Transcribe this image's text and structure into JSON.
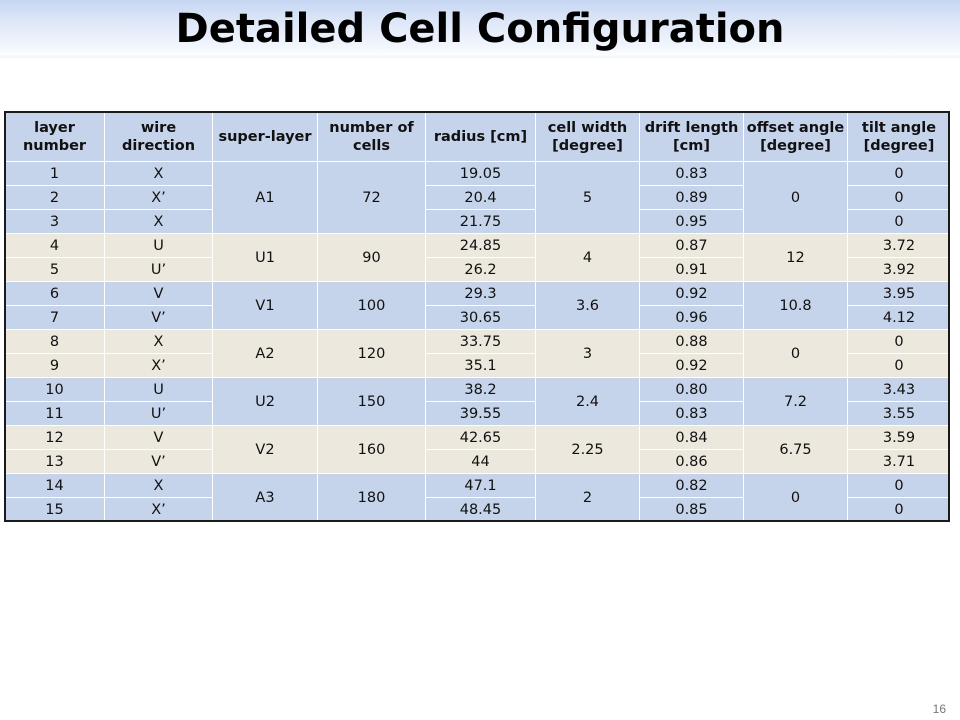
{
  "slide": {
    "title": "Detailed Cell Configuration",
    "page_number": "16"
  },
  "table": {
    "headers": [
      {
        "line1": "layer",
        "line2": "number"
      },
      {
        "line1": "wire",
        "line2": "direction"
      },
      {
        "line1": "super-layer",
        "line2": ""
      },
      {
        "line1": "number of",
        "line2": "cells"
      },
      {
        "line1": "radius [cm]",
        "line2": ""
      },
      {
        "line1": "cell width",
        "line2": "[degree]"
      },
      {
        "line1": "drift length",
        "line2": "[cm]"
      },
      {
        "line1": "offset angle",
        "line2": "[degree]"
      },
      {
        "line1": "tilt angle",
        "line2": "[degree]"
      }
    ],
    "groups": [
      {
        "super_layer": "A1",
        "cells": "72",
        "cell_width": "5",
        "offset_angle": "0",
        "shade": "blue",
        "rows": [
          {
            "layer": "1",
            "wire": "X",
            "radius": "19.05",
            "drift": "0.83",
            "tilt": "0"
          },
          {
            "layer": "2",
            "wire": "X’",
            "radius": "20.4",
            "drift": "0.89",
            "tilt": "0"
          },
          {
            "layer": "3",
            "wire": "X",
            "radius": "21.75",
            "drift": "0.95",
            "tilt": "0"
          }
        ]
      },
      {
        "super_layer": "U1",
        "cells": "90",
        "cell_width": "4",
        "offset_angle": "12",
        "shade": "beige",
        "rows": [
          {
            "layer": "4",
            "wire": "U",
            "radius": "24.85",
            "drift": "0.87",
            "tilt": "3.72"
          },
          {
            "layer": "5",
            "wire": "U’",
            "radius": "26.2",
            "drift": "0.91",
            "tilt": "3.92"
          }
        ]
      },
      {
        "super_layer": "V1",
        "cells": "100",
        "cell_width": "3.6",
        "offset_angle": "10.8",
        "shade": "blue",
        "rows": [
          {
            "layer": "6",
            "wire": "V",
            "radius": "29.3",
            "drift": "0.92",
            "tilt": "3.95"
          },
          {
            "layer": "7",
            "wire": "V’",
            "radius": "30.65",
            "drift": "0.96",
            "tilt": "4.12"
          }
        ]
      },
      {
        "super_layer": "A2",
        "cells": "120",
        "cell_width": "3",
        "offset_angle": "0",
        "shade": "beige",
        "rows": [
          {
            "layer": "8",
            "wire": "X",
            "radius": "33.75",
            "drift": "0.88",
            "tilt": "0"
          },
          {
            "layer": "9",
            "wire": "X’",
            "radius": "35.1",
            "drift": "0.92",
            "tilt": "0"
          }
        ]
      },
      {
        "super_layer": "U2",
        "cells": "150",
        "cell_width": "2.4",
        "offset_angle": "7.2",
        "shade": "blue",
        "rows": [
          {
            "layer": "10",
            "wire": "U",
            "radius": "38.2",
            "drift": "0.80",
            "tilt": "3.43"
          },
          {
            "layer": "11",
            "wire": "U’",
            "radius": "39.55",
            "drift": "0.83",
            "tilt": "3.55"
          }
        ]
      },
      {
        "super_layer": "V2",
        "cells": "160",
        "cell_width": "2.25",
        "offset_angle": "6.75",
        "shade": "beige",
        "rows": [
          {
            "layer": "12",
            "wire": "V",
            "radius": "42.65",
            "drift": "0.84",
            "tilt": "3.59"
          },
          {
            "layer": "13",
            "wire": "V’",
            "radius": "44",
            "drift": "0.86",
            "tilt": "3.71"
          }
        ]
      },
      {
        "super_layer": "A3",
        "cells": "180",
        "cell_width": "2",
        "offset_angle": "0",
        "shade": "blue",
        "rows": [
          {
            "layer": "14",
            "wire": "X",
            "radius": "47.1",
            "drift": "0.82",
            "tilt": "0"
          },
          {
            "layer": "15",
            "wire": "X’",
            "radius": "48.45",
            "drift": "0.85",
            "tilt": "0"
          }
        ]
      }
    ],
    "colors": {
      "blue_shade": "#c5d3eb",
      "beige_shade": "#ece8dd",
      "border": "#1a1a1a"
    }
  }
}
